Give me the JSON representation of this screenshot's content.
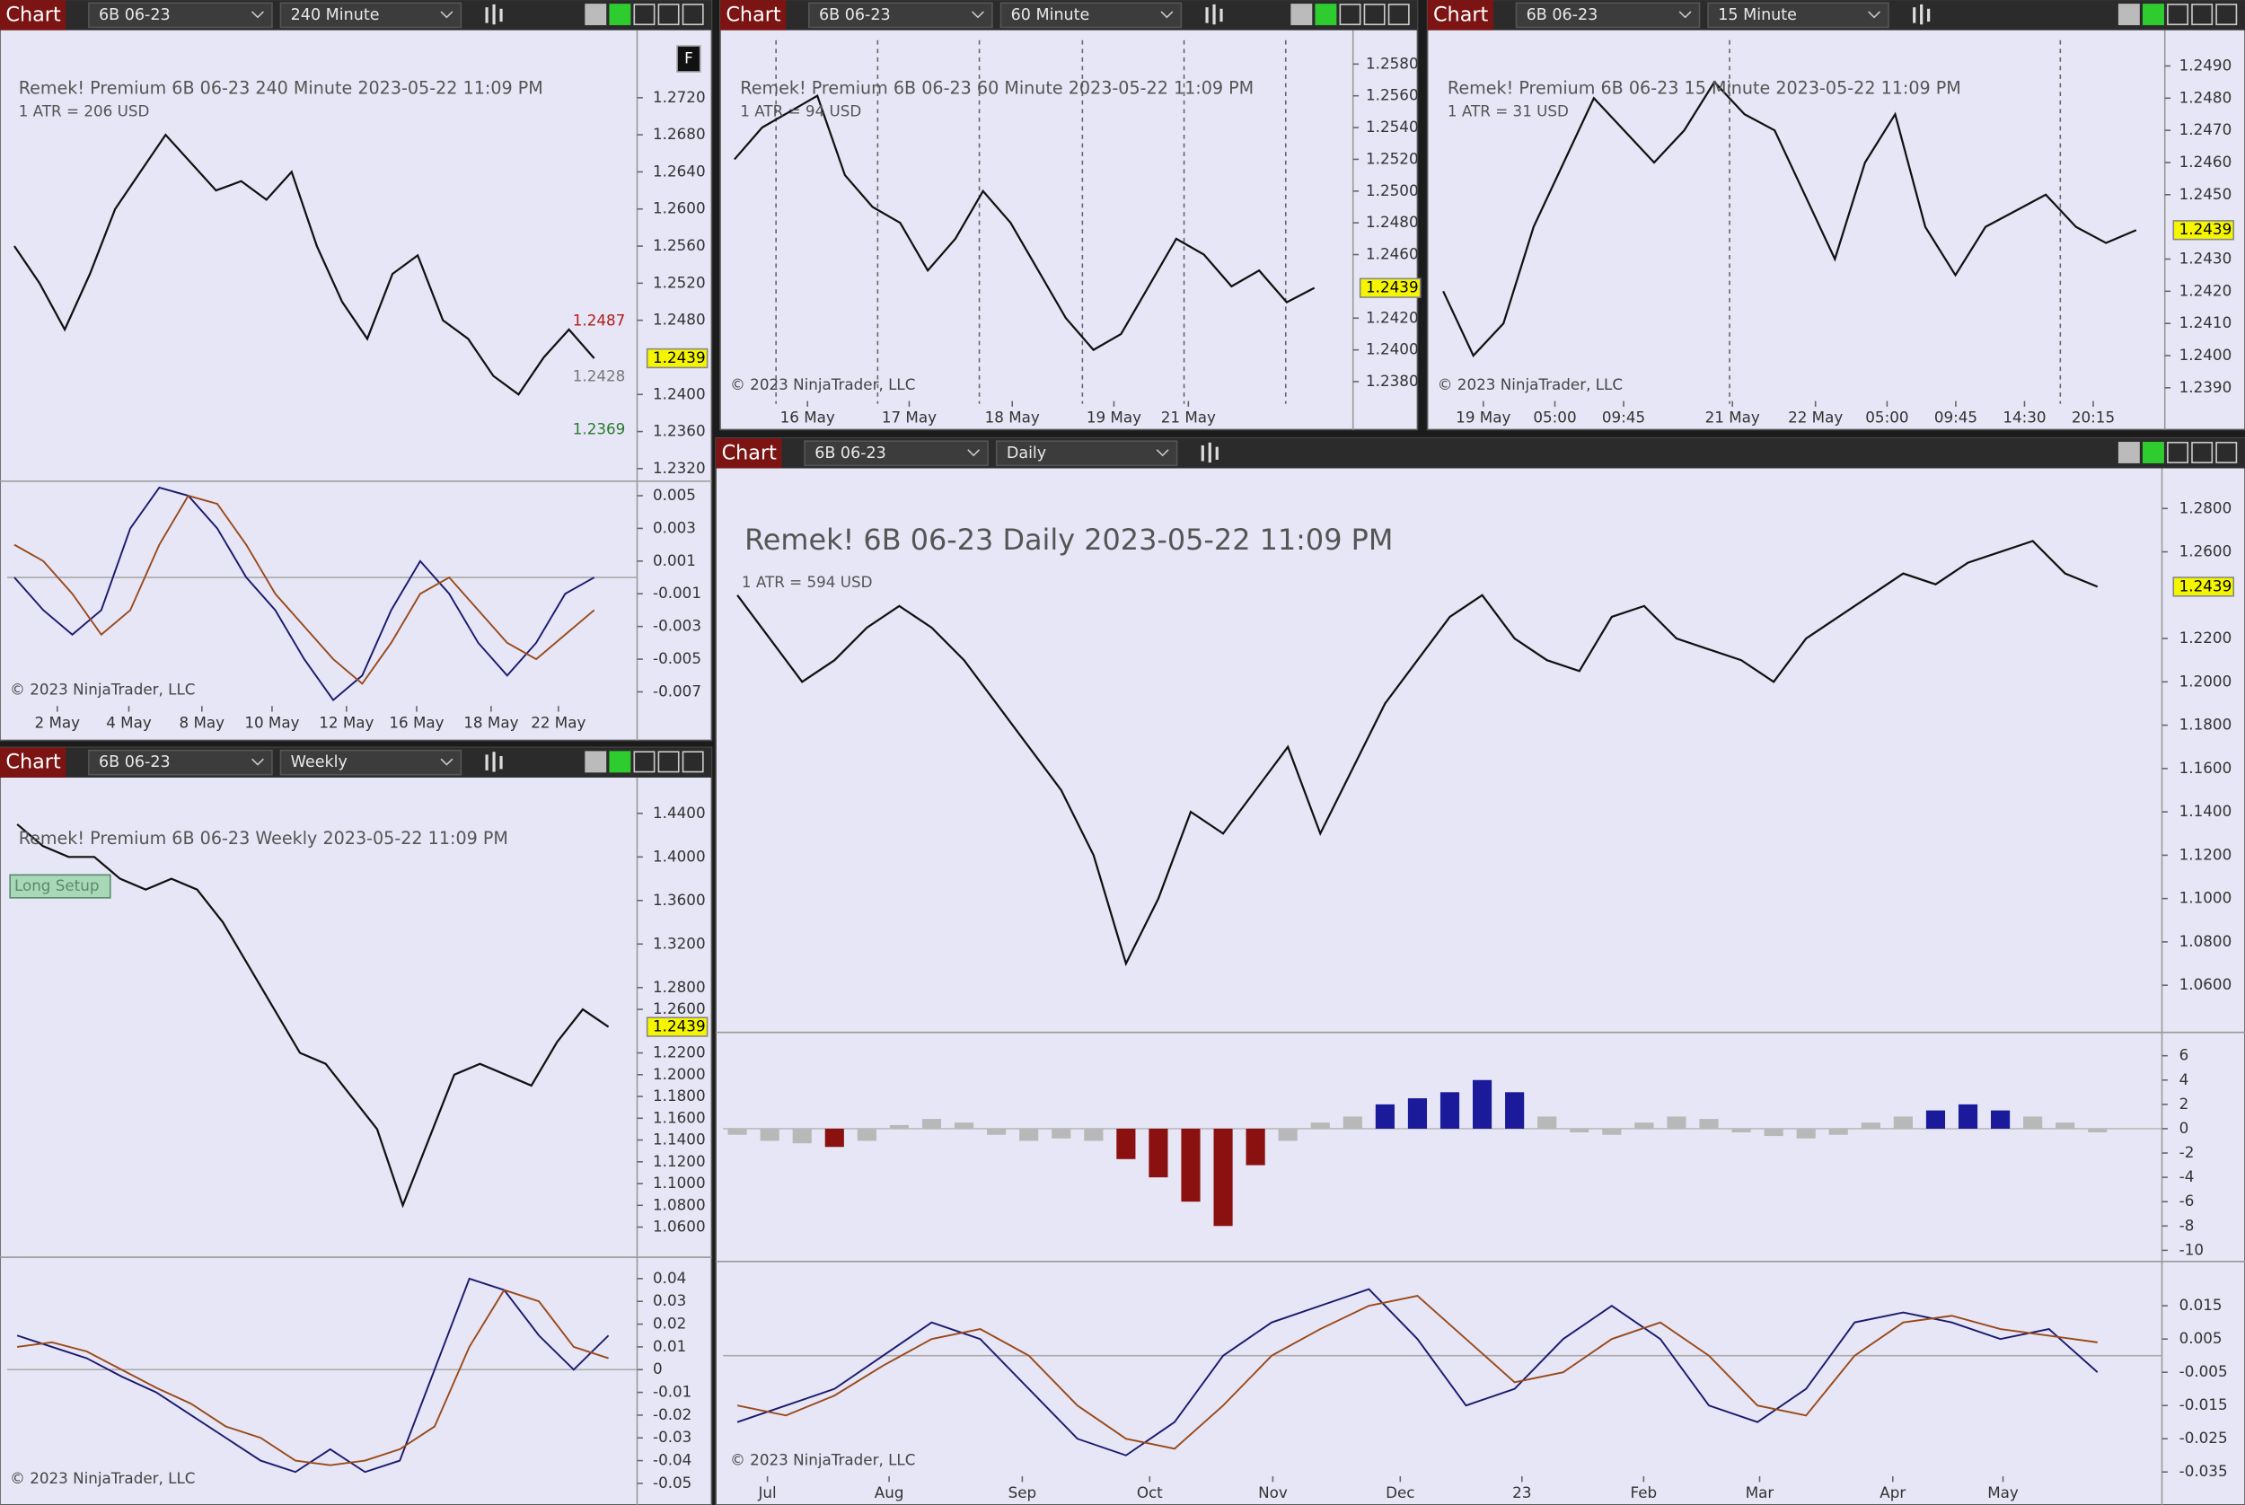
{
  "windows": [
    {
      "header": {
        "label": "Chart",
        "instrument": "6B 06-23",
        "interval": "240 Minute"
      },
      "title": "Remek!  Premium  6B 06-23  240 Minute  2023-05-22 11:09 PM",
      "atr": "1 ATR = 206 USD",
      "copyright": "© 2023 NinjaTrader, LLC",
      "annotations": [
        1.2487,
        1.2428,
        1.2369,
        "F"
      ],
      "xticks": [
        "2 May",
        "4 May",
        "8 May",
        "10 May",
        "12 May",
        "16 May",
        "18 May",
        "22 May"
      ],
      "panes": [
        {
          "type": "price",
          "ylim": [
            1.2308,
            1.2782
          ],
          "last": 1.2439,
          "yticks": [
            {
              "value": 1.272,
              "label": "1.2720"
            },
            {
              "value": 1.268,
              "label": "1.2680"
            },
            {
              "value": 1.264,
              "label": "1.2640"
            },
            {
              "value": 1.26,
              "label": "1.2600"
            },
            {
              "value": 1.256,
              "label": "1.2560"
            },
            {
              "value": 1.252,
              "label": "1.2520"
            },
            {
              "value": 1.248,
              "label": "1.2480"
            },
            {
              "value": 1.24,
              "label": "1.2400"
            },
            {
              "value": 1.236,
              "label": "1.2360"
            },
            {
              "value": 1.232,
              "label": "1.2320"
            }
          ],
          "values": [
            1.256,
            1.252,
            1.247,
            1.253,
            1.26,
            1.264,
            1.268,
            1.265,
            1.262,
            1.263,
            1.261,
            1.264,
            1.256,
            1.25,
            1.246,
            1.253,
            1.255,
            1.248,
            1.246,
            1.242,
            1.24,
            1.244,
            1.247,
            1.2439
          ]
        },
        {
          "type": "oscillator",
          "ylim": [
            -0.0076,
            0.0058
          ],
          "yticks": [
            0.005,
            0.003,
            0.001,
            -0.001,
            -0.003,
            -0.005,
            -0.007
          ],
          "series": [
            {
              "color": "#1a1a6e",
              "values": [
                0,
                -0.002,
                -0.0035,
                -0.002,
                0.003,
                0.0055,
                0.005,
                0.003,
                0,
                -0.002,
                -0.005,
                -0.0075,
                -0.006,
                -0.002,
                0.001,
                -0.001,
                -0.004,
                -0.006,
                -0.004,
                -0.001,
                0
              ]
            },
            {
              "color": "#9a4a1a",
              "values": [
                0.002,
                0.001,
                -0.001,
                -0.0035,
                -0.002,
                0.002,
                0.005,
                0.0045,
                0.002,
                -0.001,
                -0.003,
                -0.005,
                -0.0065,
                -0.004,
                -0.001,
                0,
                -0.002,
                -0.004,
                -0.005,
                -0.0035,
                -0.002
              ]
            }
          ]
        }
      ]
    },
    {
      "header": {
        "label": "Chart",
        "instrument": "6B 06-23",
        "interval": "60 Minute"
      },
      "title": "Remek!  Premium  6B 06-23  60 Minute  2023-05-22 11:09 PM",
      "atr": "1 ATR = 94 USD",
      "copyright": "© 2023 NinjaTrader, LLC",
      "annotations": [],
      "xticks": [
        "16 May",
        "17 May",
        "18 May",
        "19 May",
        "21 May"
      ],
      "panes": [
        {
          "type": "price",
          "ylim": [
            1.2366,
            1.2595
          ],
          "last": 1.2439,
          "yticks": [
            {
              "value": 1.258,
              "label": "1.2580"
            },
            {
              "value": 1.256,
              "label": "1.2560"
            },
            {
              "value": 1.254,
              "label": "1.2540"
            },
            {
              "value": 1.252,
              "label": "1.2520"
            },
            {
              "value": 1.25,
              "label": "1.2500"
            },
            {
              "value": 1.248,
              "label": "1.2480"
            },
            {
              "value": 1.246,
              "label": "1.2460"
            },
            {
              "value": 1.242,
              "label": "1.2420"
            },
            {
              "value": 1.24,
              "label": "1.2400"
            },
            {
              "value": 1.238,
              "label": "1.2380"
            }
          ],
          "values": [
            1.252,
            1.254,
            1.255,
            1.256,
            1.251,
            1.249,
            1.248,
            1.245,
            1.247,
            1.25,
            1.248,
            1.245,
            1.242,
            1.24,
            1.241,
            1.244,
            1.247,
            1.246,
            1.244,
            1.245,
            1.243,
            1.2439
          ]
        }
      ]
    },
    {
      "header": {
        "label": "Chart",
        "instrument": "6B 06-23",
        "interval": "15 Minute"
      },
      "title": "Remek!  Premium  6B 06-23  15 Minute  2023-05-22 11:09 PM",
      "atr": "1 ATR = 31 USD",
      "copyright": "© 2023 NinjaTrader, LLC",
      "annotations": [],
      "xticks": [
        "19 May",
        "05:00",
        "09:45",
        "21 May",
        "22 May",
        "05:00",
        "09:45",
        "14:30",
        "20:15"
      ],
      "panes": [
        {
          "type": "price",
          "ylim": [
            1.2385,
            1.2498
          ],
          "last": 1.2439,
          "yticks": [
            {
              "value": 1.249,
              "label": "1.2490"
            },
            {
              "value": 1.248,
              "label": "1.2480"
            },
            {
              "value": 1.247,
              "label": "1.2470"
            },
            {
              "value": 1.246,
              "label": "1.2460"
            },
            {
              "value": 1.245,
              "label": "1.2450"
            },
            {
              "value": 1.243,
              "label": "1.2430"
            },
            {
              "value": 1.242,
              "label": "1.2420"
            },
            {
              "value": 1.241,
              "label": "1.2410"
            },
            {
              "value": 1.24,
              "label": "1.2400"
            },
            {
              "value": 1.239,
              "label": "1.2390"
            }
          ],
          "values": [
            1.242,
            1.24,
            1.241,
            1.244,
            1.246,
            1.248,
            1.247,
            1.246,
            1.247,
            1.2485,
            1.2475,
            1.247,
            1.245,
            1.243,
            1.246,
            1.2475,
            1.244,
            1.2425,
            1.244,
            1.2445,
            1.245,
            1.244,
            1.2435,
            1.2439
          ]
        }
      ]
    },
    {
      "header": {
        "label": "Chart",
        "instrument": "6B 06-23",
        "interval": "Weekly"
      },
      "title": "Remek!  Premium  6B 06-23  Weekly  2023-05-22 11:09 PM",
      "copyright": "© 2023 NinjaTrader, LLC",
      "annotations": [
        "Long Setup"
      ],
      "xticks": [],
      "panes": [
        {
          "type": "price",
          "ylim": [
            1.0337,
            1.4624
          ],
          "last": 1.2439,
          "yticks": [
            {
              "value": 1.44,
              "label": "1.4400"
            },
            {
              "value": 1.4,
              "label": "1.4000"
            },
            {
              "value": 1.36,
              "label": "1.3600"
            },
            {
              "value": 1.32,
              "label": "1.3200"
            },
            {
              "value": 1.28,
              "label": "1.2800"
            },
            {
              "value": 1.26,
              "label": "1.2600"
            },
            {
              "value": 1.22,
              "label": "1.2200"
            },
            {
              "value": 1.2,
              "label": "1.2000"
            },
            {
              "value": 1.18,
              "label": "1.1800"
            },
            {
              "value": 1.16,
              "label": "1.1600"
            },
            {
              "value": 1.14,
              "label": "1.1400"
            },
            {
              "value": 1.12,
              "label": "1.1200"
            },
            {
              "value": 1.1,
              "label": "1.1000"
            },
            {
              "value": 1.08,
              "label": "1.0800"
            },
            {
              "value": 1.06,
              "label": "1.0600"
            }
          ],
          "values": [
            1.43,
            1.41,
            1.4,
            1.4,
            1.38,
            1.37,
            1.38,
            1.37,
            1.34,
            1.3,
            1.26,
            1.22,
            1.21,
            1.18,
            1.15,
            1.08,
            1.14,
            1.2,
            1.21,
            1.2,
            1.19,
            1.23,
            1.26,
            1.2439
          ]
        },
        {
          "type": "oscillator",
          "ylim": [
            -0.0563,
            0.0488
          ],
          "yticks": [
            0.04,
            0.03,
            0.02,
            0.01,
            0,
            -0.01,
            -0.02,
            -0.03,
            -0.04,
            -0.05
          ],
          "series": [
            {
              "color": "#1a1a6e",
              "values": [
                0.015,
                0.01,
                0.005,
                -0.003,
                -0.01,
                -0.02,
                -0.03,
                -0.04,
                -0.045,
                -0.035,
                -0.045,
                -0.04,
                0,
                0.04,
                0.035,
                0.015,
                0,
                0.015
              ]
            },
            {
              "color": "#9a4a1a",
              "values": [
                0.01,
                0.012,
                0.008,
                0,
                -0.008,
                -0.015,
                -0.025,
                -0.03,
                -0.04,
                -0.042,
                -0.04,
                -0.035,
                -0.025,
                0.01,
                0.035,
                0.03,
                0.01,
                0.005
              ]
            }
          ]
        }
      ]
    },
    {
      "header": {
        "label": "Chart",
        "instrument": "6B 06-23",
        "interval": "Daily"
      },
      "title": "Remek!  6B 06-23  Daily  2023-05-22 11:09 PM",
      "atr": "1 ATR = 594 USD",
      "copyright": "© 2023 NinjaTrader, LLC",
      "annotations": [],
      "xticks": [
        "Jul",
        "Aug",
        "Sep",
        "Oct",
        "Nov",
        "Dec",
        "23",
        "Feb",
        "Mar",
        "Apr",
        "May"
      ],
      "panes": [
        {
          "type": "price",
          "ylim": [
            1.0389,
            1.2926
          ],
          "last": 1.2439,
          "yticks": [
            {
              "value": 1.28,
              "label": "1.2800"
            },
            {
              "value": 1.26,
              "label": "1.2600"
            },
            {
              "value": 1.22,
              "label": "1.2200"
            },
            {
              "value": 1.2,
              "label": "1.2000"
            },
            {
              "value": 1.18,
              "label": "1.1800"
            },
            {
              "value": 1.16,
              "label": "1.1600"
            },
            {
              "value": 1.14,
              "label": "1.1400"
            },
            {
              "value": 1.12,
              "label": "1.1200"
            },
            {
              "value": 1.1,
              "label": "1.1000"
            },
            {
              "value": 1.08,
              "label": "1.0800"
            },
            {
              "value": 1.06,
              "label": "1.0600"
            }
          ],
          "values": [
            1.24,
            1.22,
            1.2,
            1.21,
            1.225,
            1.235,
            1.225,
            1.21,
            1.19,
            1.17,
            1.15,
            1.12,
            1.07,
            1.1,
            1.14,
            1.13,
            1.15,
            1.17,
            1.13,
            1.16,
            1.19,
            1.21,
            1.23,
            1.24,
            1.22,
            1.21,
            1.205,
            1.23,
            1.235,
            1.22,
            1.215,
            1.21,
            1.2,
            1.22,
            1.23,
            1.24,
            1.25,
            1.245,
            1.255,
            1.26,
            1.265,
            1.25,
            1.2439
          ]
        },
        {
          "type": "histogram",
          "ylim": [
            -10.8,
            7.8
          ],
          "yticks": [
            6,
            4,
            2,
            0,
            -2,
            -4,
            -6,
            -8,
            -10
          ],
          "values": [
            -0.5,
            -1,
            -1.2,
            -1.5,
            -1,
            0.3,
            0.8,
            0.5,
            -0.5,
            -1,
            -0.8,
            -1,
            -2.5,
            -4,
            -6,
            -8,
            -3,
            -1,
            0.5,
            1,
            2,
            2.5,
            3,
            4,
            3,
            1,
            -0.3,
            -0.5,
            0.5,
            1,
            0.8,
            -0.3,
            -0.6,
            -0.8,
            -0.5,
            0.5,
            1,
            1.5,
            2,
            1.5,
            1,
            0.5,
            -0.3
          ]
        },
        {
          "type": "oscillator",
          "ylim": [
            -0.038,
            0.0279
          ],
          "yticks": [
            0.015,
            0.005,
            -0.005,
            -0.015,
            -0.025,
            -0.035
          ],
          "series": [
            {
              "color": "#1a1a6e",
              "values": [
                -0.02,
                -0.015,
                -0.01,
                0,
                0.01,
                0.005,
                -0.01,
                -0.025,
                -0.03,
                -0.02,
                0,
                0.01,
                0.015,
                0.02,
                0.005,
                -0.015,
                -0.01,
                0.005,
                0.015,
                0.005,
                -0.015,
                -0.02,
                -0.01,
                0.01,
                0.013,
                0.01,
                0.005,
                0.008,
                -0.005
              ]
            },
            {
              "color": "#9a4a1a",
              "values": [
                -0.015,
                -0.018,
                -0.012,
                -0.003,
                0.005,
                0.008,
                0,
                -0.015,
                -0.025,
                -0.028,
                -0.015,
                0,
                0.008,
                0.015,
                0.018,
                0.005,
                -0.008,
                -0.005,
                0.005,
                0.01,
                0,
                -0.015,
                -0.018,
                0,
                0.01,
                0.012,
                0.008,
                0.006,
                0.004
              ]
            }
          ]
        }
      ]
    }
  ]
}
